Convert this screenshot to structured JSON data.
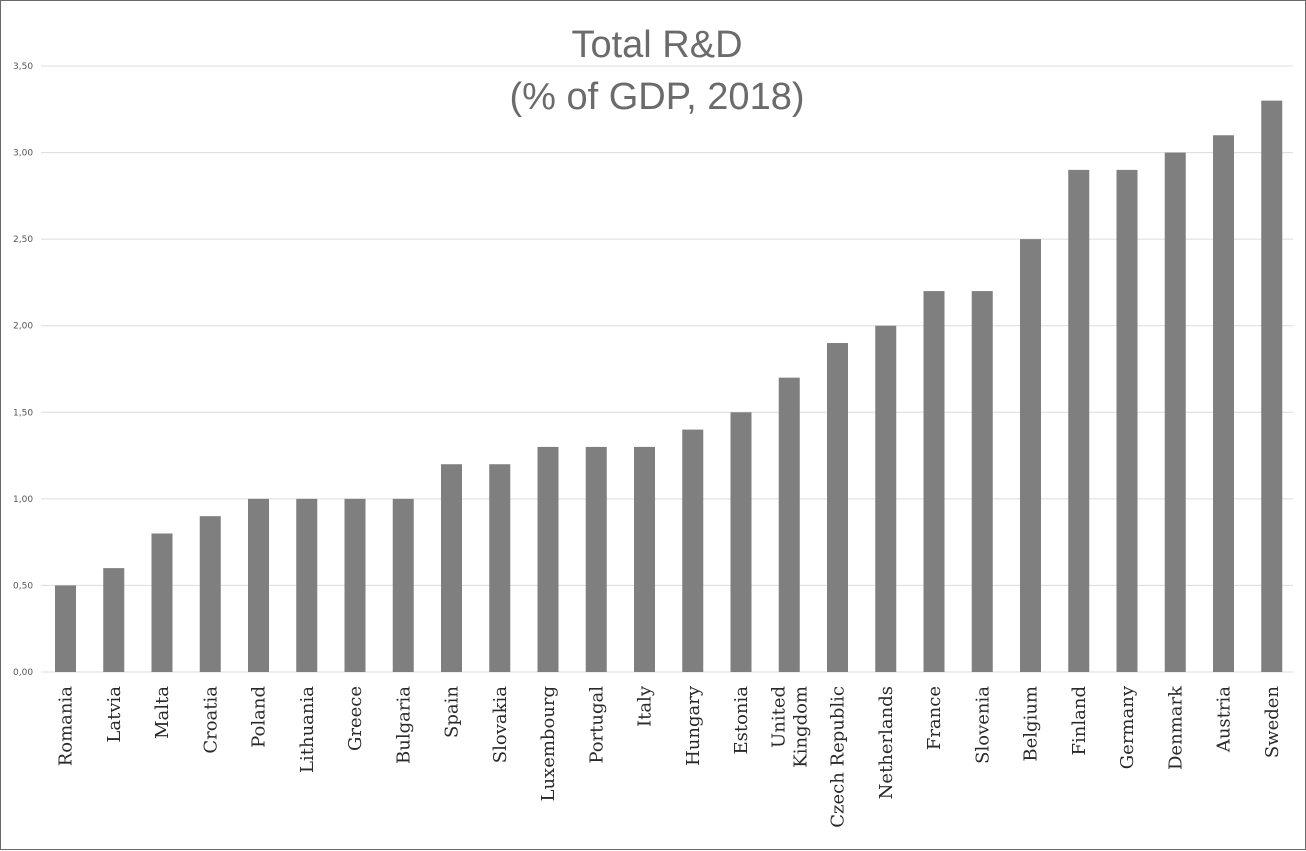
{
  "chart_data": {
    "type": "bar",
    "title": "Total R&D",
    "subtitle": "(% of GDP, 2018)",
    "xlabel": "",
    "ylabel": "",
    "ylim": [
      0,
      3.5
    ],
    "yticks": [
      "0,00",
      "0,50",
      "1,00",
      "1,50",
      "2,00",
      "2,50",
      "3,00",
      "3,50"
    ],
    "grid": true,
    "bar_color": "#7f7f7f",
    "categories": [
      [
        "Romania"
      ],
      [
        "Latvia"
      ],
      [
        "Malta"
      ],
      [
        "Croatia"
      ],
      [
        "Poland"
      ],
      [
        "Lithuania"
      ],
      [
        "Greece"
      ],
      [
        "Bulgaria"
      ],
      [
        "Spain"
      ],
      [
        "Slovakia"
      ],
      [
        "Luxembourg"
      ],
      [
        "Portugal"
      ],
      [
        "Italy"
      ],
      [
        "Hungary"
      ],
      [
        "Estonia"
      ],
      [
        "United",
        "Kingdom"
      ],
      [
        "Czech Republic"
      ],
      [
        "Netherlands"
      ],
      [
        "France"
      ],
      [
        "Slovenia"
      ],
      [
        "Belgium"
      ],
      [
        "Finland"
      ],
      [
        "Germany"
      ],
      [
        "Denmark"
      ],
      [
        "Austria"
      ],
      [
        "Sweden"
      ]
    ],
    "values": [
      0.5,
      0.6,
      0.8,
      0.9,
      1.0,
      1.0,
      1.0,
      1.0,
      1.2,
      1.2,
      1.3,
      1.3,
      1.3,
      1.4,
      1.5,
      1.7,
      1.9,
      2.0,
      2.2,
      2.2,
      2.5,
      2.9,
      2.9,
      3.0,
      3.1,
      3.3
    ]
  }
}
